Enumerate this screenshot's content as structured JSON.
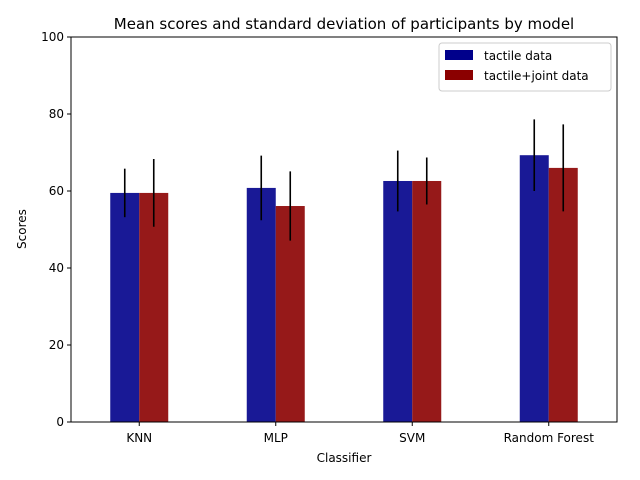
{
  "chart_data": {
    "type": "bar",
    "title": "Mean scores and standard deviation of participants by model",
    "xlabel": "Classifier",
    "ylabel": "Scores",
    "ylim": [
      0,
      100
    ],
    "yticks": [
      0,
      20,
      40,
      60,
      80,
      100
    ],
    "categories": [
      "KNN",
      "MLP",
      "SVM",
      "Random Forest"
    ],
    "series": [
      {
        "name": "tactile data",
        "color": "#00008B",
        "values": [
          59.5,
          60.8,
          62.6,
          69.3
        ],
        "error": [
          6.3,
          8.4,
          7.9,
          9.3
        ]
      },
      {
        "name": "tactile+joint data",
        "color": "#8B0000",
        "values": [
          59.5,
          56.1,
          62.6,
          66.0
        ],
        "error": [
          8.8,
          9.0,
          6.1,
          11.3
        ]
      }
    ],
    "bar_opacity": 0.9,
    "error_color": "#000000",
    "legend_position": "upper right",
    "grid": false
  }
}
